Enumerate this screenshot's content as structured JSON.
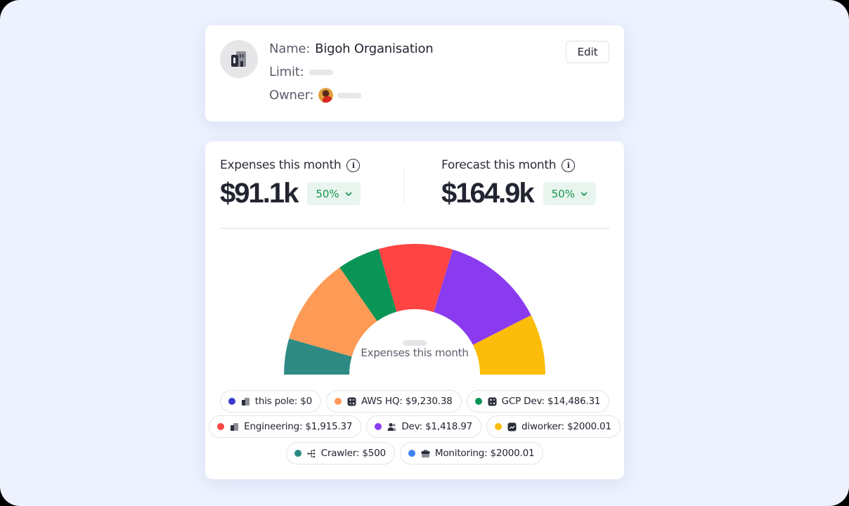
{
  "organisation": {
    "name_label": "Name:",
    "name_value": "Bigoh Organisation",
    "limit_label": "Limit:",
    "owner_label": "Owner:",
    "edit_label": "Edit",
    "icon": "building-icon"
  },
  "metrics": {
    "expenses": {
      "title": "Expenses this month",
      "value": "$91.1k",
      "badge": "50%",
      "info_icon": "i"
    },
    "forecast": {
      "title": "Forecast this month",
      "value": "$164.9k",
      "badge": "50%",
      "info_icon": "i"
    }
  },
  "gauge": {
    "center_label": "Expenses this month"
  },
  "legend": [
    {
      "label": "this pole: $0",
      "color": "#3b3ccf",
      "icon": "building-icon"
    },
    {
      "label": "AWS HQ: $9,230.38",
      "color": "#fd9a56",
      "icon": "calculator-icon"
    },
    {
      "label": "GCP Dev: $14,486.31",
      "color": "#0a9455",
      "icon": "calculator-icon"
    },
    {
      "label": "Engineering: $1,915.37",
      "color": "#ff4444",
      "icon": "building-icon"
    },
    {
      "label": "Dev: $1,418.97",
      "color": "#8a3bf0",
      "icon": "users-icon"
    },
    {
      "label": "diworker: $2000.01",
      "color": "#fbbd0a",
      "icon": "chart-icon"
    },
    {
      "label": "Crawler: $500",
      "color": "#2f8a84",
      "icon": "hierarchy-icon"
    },
    {
      "label": "Monitoring: $2000.01",
      "color": "#3d82f5",
      "icon": "briefcase-icon"
    }
  ],
  "chart_data": {
    "type": "pie",
    "subtype": "semi-donut gauge",
    "title": "Expenses this month",
    "segments_in_order_left_to_right": [
      {
        "name": "Crawler",
        "color": "#2f8a84",
        "start_deg": 0,
        "end_deg": 16
      },
      {
        "name": "AWS HQ",
        "color": "#fd9a56",
        "start_deg": 16,
        "end_deg": 55
      },
      {
        "name": "GCP Dev",
        "color": "#0a9455",
        "start_deg": 55,
        "end_deg": 74
      },
      {
        "name": "Engineering",
        "color": "#ff4444",
        "start_deg": 74,
        "end_deg": 107
      },
      {
        "name": "Dev",
        "color": "#8a3bf0",
        "start_deg": 107,
        "end_deg": 153
      },
      {
        "name": "diworker",
        "color": "#fbbd0a",
        "start_deg": 153,
        "end_deg": 180
      }
    ],
    "legend_values": [
      {
        "name": "this pole",
        "value": 0
      },
      {
        "name": "AWS HQ",
        "value": 9230.38
      },
      {
        "name": "GCP Dev",
        "value": 14486.31
      },
      {
        "name": "Engineering",
        "value": 1915.37
      },
      {
        "name": "Dev",
        "value": 1418.97
      },
      {
        "name": "diworker",
        "value": 2000.01
      },
      {
        "name": "Crawler",
        "value": 500
      },
      {
        "name": "Monitoring",
        "value": 2000.01
      }
    ]
  }
}
